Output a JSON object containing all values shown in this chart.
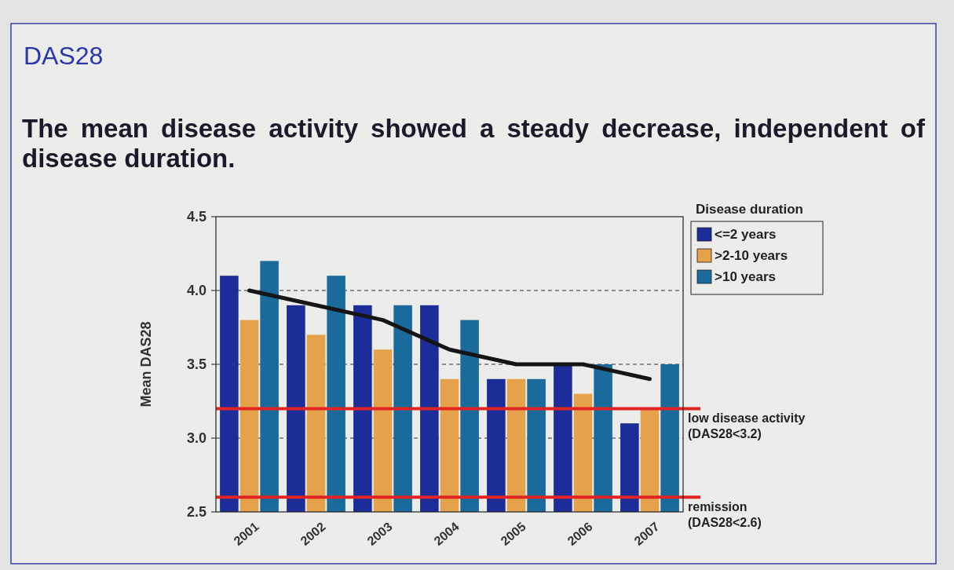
{
  "chart_data": {
    "type": "bar",
    "title": "DAS28",
    "subtitle": "The mean disease activity showed a steady decrease, independent of disease duration.",
    "ylabel": "Mean DAS28",
    "legend_title": "Disease duration",
    "categories": [
      "2001",
      "2002",
      "2003",
      "2004",
      "2005",
      "2006",
      "2007"
    ],
    "series": [
      {
        "name": "<=2 years",
        "color": "#1c2c98",
        "values": [
          4.1,
          3.9,
          3.9,
          3.9,
          3.4,
          3.5,
          3.1
        ]
      },
      {
        "name": ">2-10 years",
        "color": "#e6a24a",
        "values": [
          3.8,
          3.7,
          3.6,
          3.4,
          3.4,
          3.3,
          3.2
        ]
      },
      {
        "name": ">10 years",
        "color": "#1a6a9c",
        "values": [
          4.2,
          4.1,
          3.9,
          3.8,
          3.4,
          3.5,
          3.5
        ]
      },
      {
        "type": "line",
        "color": "#151515",
        "values": [
          4.0,
          3.9,
          3.8,
          3.6,
          3.5,
          3.5,
          3.4
        ]
      }
    ],
    "ylim": [
      2.5,
      4.5
    ],
    "yticks": [
      {
        "value": 2.5,
        "label": "2.5"
      },
      {
        "value": 3.0,
        "label": "3.0"
      },
      {
        "value": 3.5,
        "label": "3.5"
      },
      {
        "value": 4.0,
        "label": "4.0"
      },
      {
        "value": 4.5,
        "label": "4.5"
      }
    ],
    "grid": "y",
    "legend": "top right",
    "ref_lines": [
      {
        "axis": "y",
        "value": 3.2,
        "label": "low disease activity\n(DAS28<3.2)",
        "color": "#e02424"
      },
      {
        "axis": "y",
        "value": 2.6,
        "label": "remission\n(DAS28<2.6)",
        "color": "#e02424"
      }
    ]
  }
}
